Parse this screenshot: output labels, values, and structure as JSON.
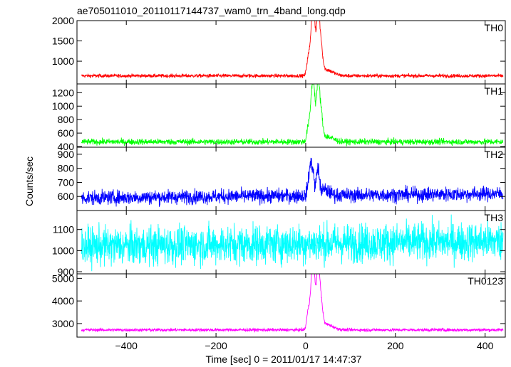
{
  "chart_data": {
    "type": "line",
    "title": "ae705011010_20110117144737_wam0_trn_4band_long.qdp",
    "xlabel": "Time [sec] 0 = 2011/01/17 14:47:37",
    "ylabel": "Counts/sec",
    "xlim": [
      -510,
      445
    ],
    "x_ticks": [
      -400,
      -200,
      0,
      200,
      400
    ],
    "x_tick_labels": [
      "−400",
      "−200",
      "0",
      "200",
      "400"
    ],
    "x_start": -500,
    "x_end": 440,
    "bin_sec": 0.5,
    "grid": false,
    "panels": [
      {
        "name": "TH0",
        "color": "#ff0000",
        "ylim": [
          440,
          2000
        ],
        "yticks": [
          1000,
          1500,
          2000
        ],
        "baseline": 640,
        "noise": 22,
        "trend": 0,
        "peaks": [
          {
            "x": 5,
            "height": 380,
            "width": 3
          },
          {
            "x": 14,
            "height": 1250,
            "width": 4
          },
          {
            "x": 19,
            "height": 900,
            "width": 3
          },
          {
            "x": 27,
            "height": 1350,
            "width": 3
          },
          {
            "x": 33,
            "height": 800,
            "width": 4
          },
          {
            "x": 45,
            "height": 150,
            "width": 15
          }
        ]
      },
      {
        "name": "TH1",
        "color": "#00ff00",
        "ylim": [
          390,
          1330
        ],
        "yticks": [
          400,
          600,
          800,
          1000,
          1200
        ],
        "baseline": 470,
        "noise": 22,
        "trend": 0,
        "peaks": [
          {
            "x": 5,
            "height": 180,
            "width": 3
          },
          {
            "x": 14,
            "height": 700,
            "width": 4
          },
          {
            "x": 19,
            "height": 450,
            "width": 3
          },
          {
            "x": 27,
            "height": 750,
            "width": 3
          },
          {
            "x": 33,
            "height": 450,
            "width": 4
          },
          {
            "x": 45,
            "height": 80,
            "width": 15
          }
        ]
      },
      {
        "name": "TH2",
        "color": "#0000ff",
        "ylim": [
          500,
          950
        ],
        "yticks": [
          600,
          700,
          800,
          900
        ],
        "baseline": 590,
        "noise": 25,
        "trend": 30,
        "peaks": [
          {
            "x": 10,
            "height": 200,
            "width": 4
          },
          {
            "x": 16,
            "height": 120,
            "width": 3
          },
          {
            "x": 27,
            "height": 180,
            "width": 3
          },
          {
            "x": 40,
            "height": 40,
            "width": 12
          }
        ]
      },
      {
        "name": "TH3",
        "color": "#00ffff",
        "ylim": [
          890,
          1190
        ],
        "yticks": [
          900,
          1000,
          1100
        ],
        "baseline": 1020,
        "noise": 45,
        "trend": 25,
        "peaks": []
      },
      {
        "name": "TH0123",
        "color": "#ff00ff",
        "ylim": [
          2400,
          5200
        ],
        "yticks": [
          3000,
          4000,
          5000
        ],
        "baseline": 2720,
        "noise": 35,
        "trend": 0,
        "peaks": [
          {
            "x": 5,
            "height": 700,
            "width": 3
          },
          {
            "x": 14,
            "height": 2300,
            "width": 4
          },
          {
            "x": 19,
            "height": 1500,
            "width": 3
          },
          {
            "x": 27,
            "height": 2500,
            "width": 3
          },
          {
            "x": 33,
            "height": 1400,
            "width": 4
          },
          {
            "x": 45,
            "height": 250,
            "width": 15
          }
        ]
      }
    ]
  }
}
